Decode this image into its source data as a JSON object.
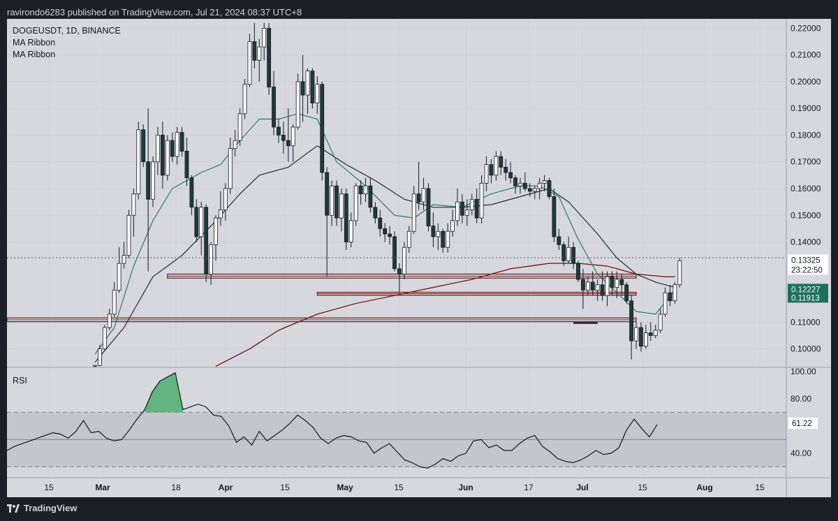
{
  "publish_line": "ravirondo6283 published on TradingView.com, Jul 21, 2024 08:37 UTC+8",
  "footer_brand": "TradingView",
  "chart_data": {
    "type": "candlestick",
    "symbol_line": "DOGEUSDT, 1D, BINANCE",
    "indicators": [
      "MA Ribbon",
      "MA Ribbon"
    ],
    "rsi_label": "RSI",
    "x_ticks": [
      "15",
      "Mar",
      "18",
      "Apr",
      "15",
      "May",
      "15",
      "Jun",
      "17",
      "Jul",
      "15",
      "Aug",
      "15"
    ],
    "price_ticks": [
      "0.22000",
      "0.21000",
      "0.20000",
      "0.19000",
      "0.18000",
      "0.17000",
      "0.16000",
      "0.15000",
      "0.14000",
      "0.11000",
      "0.10000"
    ],
    "price_range": [
      0.0931,
      0.2235
    ],
    "rsi_ticks": [
      "100.00",
      "80.00",
      "40.00"
    ],
    "rsi_range": [
      22,
      103
    ],
    "rsi_band": [
      30,
      70
    ],
    "price_labels": [
      {
        "text": "0.13325",
        "value": 0.13325,
        "style": "last",
        "color": "#ffffff"
      },
      {
        "text": "23:22:50",
        "value": 0.1296,
        "style": "timer",
        "color": "#ffffff"
      },
      {
        "text": "0.12227",
        "value": 0.12227,
        "style": "ma",
        "color": "#1f6f5f"
      },
      {
        "text": "0.11913",
        "value": 0.11913,
        "style": "ma",
        "color": "#1f6f5f"
      }
    ],
    "rsi_last_label": "61.22",
    "horizontal_zones": [
      {
        "y1": 0.128,
        "y2": 0.1265,
        "i1": 15,
        "i2": 112,
        "color": "#8a1c1c"
      },
      {
        "y1": 0.1212,
        "y2": 0.1201,
        "i1": 46,
        "i2": 112,
        "color": "#8a1c1c"
      },
      {
        "y1": 0.1116,
        "y2": 0.1102,
        "i1": 0,
        "i2": 112,
        "color": "#8a1c1c"
      },
      {
        "y1": 0.1097,
        "y2": 0.1097,
        "i1": 99,
        "i2": 104,
        "color": "#000000"
      }
    ],
    "candles": [
      [
        0.0935,
        0.094,
        0.0931,
        0.0938
      ],
      [
        0.0938,
        0.1015,
        0.0935,
        0.1
      ],
      [
        0.1,
        0.109,
        0.0995,
        0.108
      ],
      [
        0.108,
        0.115,
        0.107,
        0.113
      ],
      [
        0.113,
        0.125,
        0.112,
        0.122
      ],
      [
        0.122,
        0.138,
        0.121,
        0.132
      ],
      [
        0.132,
        0.14,
        0.13,
        0.135
      ],
      [
        0.135,
        0.152,
        0.134,
        0.15
      ],
      [
        0.15,
        0.16,
        0.142,
        0.158
      ],
      [
        0.158,
        0.185,
        0.156,
        0.182
      ],
      [
        0.182,
        0.184,
        0.168,
        0.17
      ],
      [
        0.17,
        0.19,
        0.129,
        0.156
      ],
      [
        0.156,
        0.172,
        0.153,
        0.17
      ],
      [
        0.17,
        0.183,
        0.165,
        0.18
      ],
      [
        0.18,
        0.185,
        0.16,
        0.165
      ],
      [
        0.165,
        0.18,
        0.163,
        0.178
      ],
      [
        0.178,
        0.181,
        0.17,
        0.172
      ],
      [
        0.172,
        0.183,
        0.169,
        0.181
      ],
      [
        0.181,
        0.183,
        0.172,
        0.174
      ],
      [
        0.174,
        0.179,
        0.161,
        0.164
      ],
      [
        0.164,
        0.165,
        0.15,
        0.153
      ],
      [
        0.153,
        0.156,
        0.14,
        0.142
      ],
      [
        0.142,
        0.155,
        0.135,
        0.153
      ],
      [
        0.153,
        0.154,
        0.125,
        0.128
      ],
      [
        0.128,
        0.14,
        0.124,
        0.139
      ],
      [
        0.139,
        0.15,
        0.133,
        0.149
      ],
      [
        0.149,
        0.159,
        0.146,
        0.152
      ],
      [
        0.152,
        0.162,
        0.148,
        0.16
      ],
      [
        0.16,
        0.179,
        0.158,
        0.175
      ],
      [
        0.175,
        0.182,
        0.172,
        0.178
      ],
      [
        0.178,
        0.19,
        0.176,
        0.188
      ],
      [
        0.188,
        0.201,
        0.186,
        0.199
      ],
      [
        0.199,
        0.218,
        0.198,
        0.215
      ],
      [
        0.215,
        0.222,
        0.205,
        0.208
      ],
      [
        0.208,
        0.216,
        0.2,
        0.213
      ],
      [
        0.213,
        0.222,
        0.208,
        0.22
      ],
      [
        0.22,
        0.222,
        0.195,
        0.198
      ],
      [
        0.198,
        0.204,
        0.18,
        0.183
      ],
      [
        0.183,
        0.186,
        0.177,
        0.18
      ],
      [
        0.18,
        0.185,
        0.173,
        0.178
      ],
      [
        0.178,
        0.19,
        0.17,
        0.176
      ],
      [
        0.176,
        0.184,
        0.17,
        0.183
      ],
      [
        0.183,
        0.203,
        0.182,
        0.2
      ],
      [
        0.2,
        0.21,
        0.185,
        0.195
      ],
      [
        0.195,
        0.205,
        0.188,
        0.204
      ],
      [
        0.204,
        0.205,
        0.19,
        0.192
      ],
      [
        0.192,
        0.202,
        0.188,
        0.199
      ],
      [
        0.199,
        0.2,
        0.163,
        0.166
      ],
      [
        0.166,
        0.168,
        0.127,
        0.15
      ],
      [
        0.15,
        0.163,
        0.146,
        0.161
      ],
      [
        0.161,
        0.163,
        0.146,
        0.149
      ],
      [
        0.149,
        0.16,
        0.144,
        0.158
      ],
      [
        0.158,
        0.16,
        0.137,
        0.14
      ],
      [
        0.14,
        0.151,
        0.138,
        0.148
      ],
      [
        0.148,
        0.162,
        0.146,
        0.161
      ],
      [
        0.161,
        0.163,
        0.154,
        0.158
      ],
      [
        0.158,
        0.164,
        0.155,
        0.161
      ],
      [
        0.161,
        0.164,
        0.151,
        0.153
      ],
      [
        0.153,
        0.155,
        0.147,
        0.149
      ],
      [
        0.149,
        0.152,
        0.142,
        0.145
      ],
      [
        0.145,
        0.147,
        0.14,
        0.143
      ],
      [
        0.143,
        0.146,
        0.139,
        0.142
      ],
      [
        0.142,
        0.144,
        0.129,
        0.13
      ],
      [
        0.13,
        0.132,
        0.121,
        0.128
      ],
      [
        0.128,
        0.14,
        0.126,
        0.138
      ],
      [
        0.138,
        0.146,
        0.136,
        0.144
      ],
      [
        0.144,
        0.161,
        0.143,
        0.158
      ],
      [
        0.158,
        0.17,
        0.152,
        0.155
      ],
      [
        0.155,
        0.164,
        0.152,
        0.16
      ],
      [
        0.16,
        0.162,
        0.144,
        0.146
      ],
      [
        0.146,
        0.151,
        0.138,
        0.142
      ],
      [
        0.142,
        0.147,
        0.137,
        0.144
      ],
      [
        0.144,
        0.145,
        0.136,
        0.138
      ],
      [
        0.138,
        0.147,
        0.136,
        0.144
      ],
      [
        0.144,
        0.152,
        0.142,
        0.148
      ],
      [
        0.148,
        0.16,
        0.146,
        0.155
      ],
      [
        0.155,
        0.158,
        0.147,
        0.15
      ],
      [
        0.15,
        0.156,
        0.146,
        0.152
      ],
      [
        0.152,
        0.158,
        0.15,
        0.156
      ],
      [
        0.156,
        0.16,
        0.147,
        0.149
      ],
      [
        0.149,
        0.165,
        0.147,
        0.162
      ],
      [
        0.162,
        0.172,
        0.159,
        0.169
      ],
      [
        0.169,
        0.171,
        0.162,
        0.165
      ],
      [
        0.165,
        0.174,
        0.163,
        0.172
      ],
      [
        0.172,
        0.174,
        0.165,
        0.168
      ],
      [
        0.168,
        0.171,
        0.163,
        0.166
      ],
      [
        0.166,
        0.17,
        0.162,
        0.164
      ],
      [
        0.164,
        0.165,
        0.158,
        0.161
      ],
      [
        0.161,
        0.164,
        0.158,
        0.162
      ],
      [
        0.162,
        0.166,
        0.159,
        0.16
      ],
      [
        0.16,
        0.162,
        0.157,
        0.159
      ],
      [
        0.159,
        0.161,
        0.156,
        0.16
      ],
      [
        0.16,
        0.164,
        0.156,
        0.162
      ],
      [
        0.162,
        0.165,
        0.159,
        0.163
      ],
      [
        0.163,
        0.164,
        0.156,
        0.157
      ],
      [
        0.157,
        0.16,
        0.14,
        0.142
      ],
      [
        0.142,
        0.145,
        0.137,
        0.139
      ],
      [
        0.139,
        0.14,
        0.131,
        0.133
      ],
      [
        0.133,
        0.142,
        0.132,
        0.138
      ],
      [
        0.138,
        0.14,
        0.13,
        0.132
      ],
      [
        0.132,
        0.133,
        0.125,
        0.126
      ],
      [
        0.126,
        0.13,
        0.115,
        0.122
      ],
      [
        0.122,
        0.127,
        0.12,
        0.125
      ],
      [
        0.125,
        0.129,
        0.12,
        0.122
      ],
      [
        0.122,
        0.126,
        0.118,
        0.124
      ],
      [
        0.124,
        0.129,
        0.118,
        0.12
      ],
      [
        0.12,
        0.129,
        0.116,
        0.127
      ],
      [
        0.127,
        0.129,
        0.12,
        0.123
      ],
      [
        0.123,
        0.129,
        0.119,
        0.126
      ],
      [
        0.126,
        0.128,
        0.12,
        0.124
      ],
      [
        0.124,
        0.125,
        0.117,
        0.118
      ],
      [
        0.118,
        0.12,
        0.096,
        0.103
      ],
      [
        0.103,
        0.11,
        0.1,
        0.108
      ],
      [
        0.108,
        0.11,
        0.099,
        0.101
      ],
      [
        0.101,
        0.109,
        0.1,
        0.106
      ],
      [
        0.106,
        0.11,
        0.103,
        0.105
      ],
      [
        0.105,
        0.109,
        0.104,
        0.107
      ],
      [
        0.107,
        0.115,
        0.106,
        0.113
      ],
      [
        0.113,
        0.123,
        0.112,
        0.121
      ],
      [
        0.121,
        0.124,
        0.116,
        0.118
      ],
      [
        0.118,
        0.125,
        0.117,
        0.124
      ],
      [
        0.124,
        0.134,
        0.123,
        0.133
      ]
    ],
    "ma_fast": [
      [
        0,
        0.098
      ],
      [
        4,
        0.108
      ],
      [
        8,
        0.131
      ],
      [
        12,
        0.148
      ],
      [
        16,
        0.16
      ],
      [
        22,
        0.166
      ],
      [
        26,
        0.169
      ],
      [
        30,
        0.178
      ],
      [
        34,
        0.186
      ],
      [
        38,
        0.186
      ],
      [
        42,
        0.188
      ],
      [
        46,
        0.186
      ],
      [
        50,
        0.17
      ],
      [
        56,
        0.161
      ],
      [
        62,
        0.15
      ],
      [
        66,
        0.149
      ],
      [
        70,
        0.154
      ],
      [
        76,
        0.153
      ],
      [
        82,
        0.158
      ],
      [
        88,
        0.161
      ],
      [
        92,
        0.161
      ],
      [
        96,
        0.157
      ],
      [
        100,
        0.141
      ],
      [
        104,
        0.128
      ],
      [
        108,
        0.121
      ],
      [
        112,
        0.114
      ],
      [
        116,
        0.113
      ],
      [
        120,
        0.122
      ]
    ],
    "ma_slow": [
      [
        0,
        0.095
      ],
      [
        6,
        0.108
      ],
      [
        12,
        0.127
      ],
      [
        18,
        0.135
      ],
      [
        24,
        0.146
      ],
      [
        30,
        0.158
      ],
      [
        34,
        0.165
      ],
      [
        40,
        0.168
      ],
      [
        46,
        0.176
      ],
      [
        52,
        0.169
      ],
      [
        58,
        0.163
      ],
      [
        64,
        0.156
      ],
      [
        70,
        0.153
      ],
      [
        76,
        0.153
      ],
      [
        82,
        0.154
      ],
      [
        88,
        0.157
      ],
      [
        94,
        0.16
      ],
      [
        98,
        0.155
      ],
      [
        104,
        0.143
      ],
      [
        108,
        0.134
      ],
      [
        112,
        0.128
      ],
      [
        116,
        0.125
      ],
      [
        120,
        0.123
      ]
    ],
    "ma_200": [
      [
        25,
        0.0935
      ],
      [
        32,
        0.1
      ],
      [
        38,
        0.107
      ],
      [
        46,
        0.113
      ],
      [
        54,
        0.117
      ],
      [
        62,
        0.12
      ],
      [
        70,
        0.123
      ],
      [
        78,
        0.126
      ],
      [
        86,
        0.13
      ],
      [
        94,
        0.132
      ],
      [
        100,
        0.132
      ],
      [
        106,
        0.131
      ],
      [
        112,
        0.128
      ],
      [
        118,
        0.127
      ],
      [
        120,
        0.127
      ]
    ],
    "rsi": [
      [
        0,
        42
      ],
      [
        2,
        45
      ],
      [
        4,
        47
      ],
      [
        6,
        49
      ],
      [
        8,
        51
      ],
      [
        10,
        53
      ],
      [
        12,
        55
      ],
      [
        14,
        54
      ],
      [
        16,
        51
      ],
      [
        18,
        56
      ],
      [
        20,
        64
      ],
      [
        22,
        55
      ],
      [
        24,
        56
      ],
      [
        26,
        51
      ],
      [
        28,
        49
      ],
      [
        30,
        50
      ],
      [
        32,
        57
      ],
      [
        34,
        65
      ],
      [
        36,
        72
      ],
      [
        38,
        85
      ],
      [
        40,
        93
      ],
      [
        42,
        96
      ],
      [
        44,
        99
      ],
      [
        46,
        72
      ],
      [
        48,
        74
      ],
      [
        50,
        76
      ],
      [
        52,
        74
      ],
      [
        54,
        68
      ],
      [
        56,
        67
      ],
      [
        58,
        60
      ],
      [
        60,
        48
      ],
      [
        62,
        52
      ],
      [
        64,
        46
      ],
      [
        66,
        56
      ],
      [
        68,
        49
      ],
      [
        70,
        53
      ],
      [
        72,
        57
      ],
      [
        74,
        62
      ],
      [
        76,
        68
      ],
      [
        78,
        64
      ],
      [
        80,
        59
      ],
      [
        82,
        51
      ],
      [
        84,
        47
      ],
      [
        86,
        51
      ],
      [
        88,
        53
      ],
      [
        90,
        52
      ],
      [
        92,
        49
      ],
      [
        94,
        48
      ],
      [
        96,
        40
      ],
      [
        98,
        44
      ],
      [
        100,
        47
      ],
      [
        102,
        41
      ],
      [
        104,
        35
      ],
      [
        106,
        33
      ],
      [
        108,
        30
      ],
      [
        110,
        29
      ],
      [
        112,
        32
      ],
      [
        114,
        36
      ],
      [
        116,
        34
      ],
      [
        118,
        38
      ],
      [
        120,
        40
      ],
      [
        122,
        49
      ],
      [
        124,
        50
      ],
      [
        126,
        44
      ],
      [
        128,
        46
      ],
      [
        130,
        42
      ],
      [
        132,
        42
      ],
      [
        134,
        47
      ],
      [
        136,
        51
      ],
      [
        138,
        53
      ],
      [
        140,
        45
      ],
      [
        142,
        41
      ],
      [
        144,
        36
      ],
      [
        146,
        34
      ],
      [
        148,
        33
      ],
      [
        150,
        35
      ],
      [
        152,
        38
      ],
      [
        154,
        42
      ],
      [
        156,
        39
      ],
      [
        158,
        40
      ],
      [
        160,
        44
      ],
      [
        162,
        57
      ],
      [
        164,
        65
      ],
      [
        166,
        58
      ],
      [
        168,
        52
      ],
      [
        170,
        61
      ]
    ]
  }
}
